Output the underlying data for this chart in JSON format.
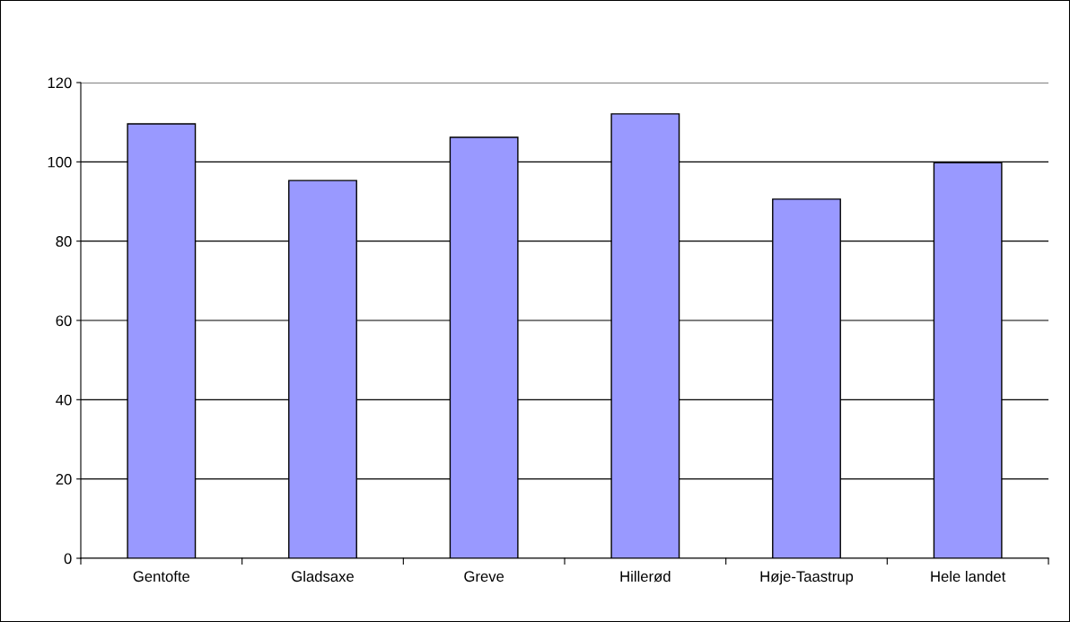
{
  "chart_data": {
    "type": "bar",
    "categories": [
      "Gentofte",
      "Gladsaxe",
      "Greve",
      "Hillerød",
      "Høje-Taastrup",
      "Hele landet"
    ],
    "values": [
      109.6,
      95.3,
      106.2,
      112.1,
      90.6,
      99.8
    ],
    "color": "#9999ff",
    "ylim": [
      0,
      120
    ],
    "yticks": [
      0,
      20,
      40,
      60,
      80,
      100,
      120
    ],
    "grid": "y"
  }
}
